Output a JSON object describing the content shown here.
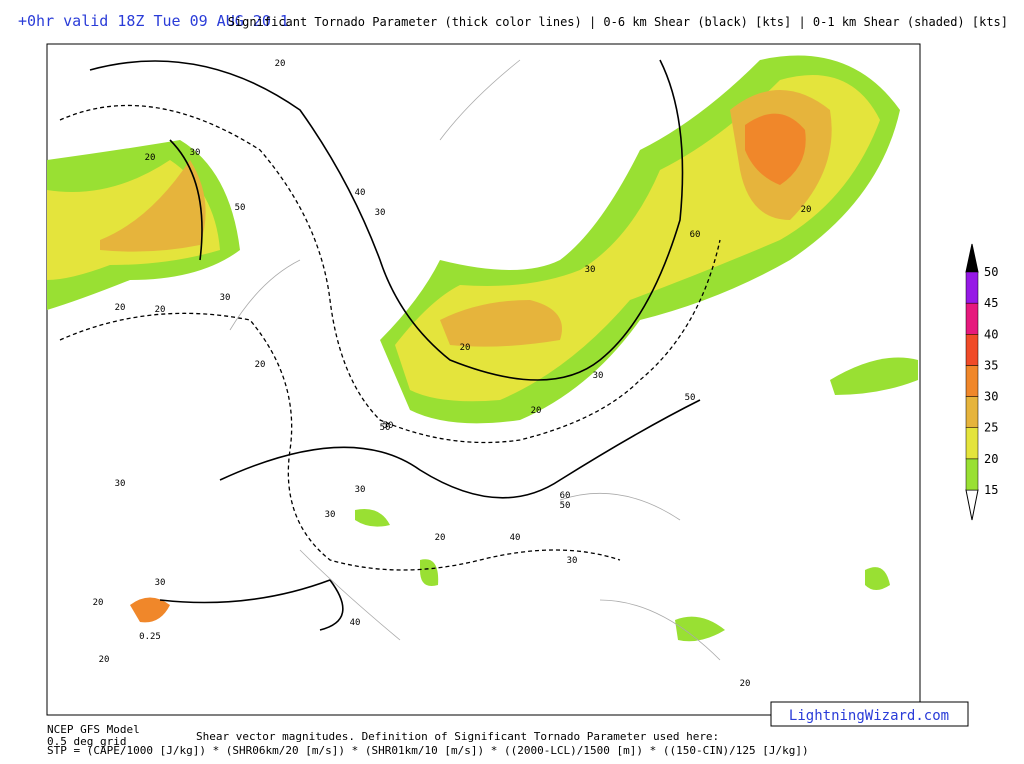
{
  "header": {
    "left": "+0hr valid 18Z Tue 09 AUG 20 1",
    "right": "Significant Tornado Parameter (thick color lines) | 0-6 km Shear (black) [kts] | 0-1 km Shear (shaded) [kts]"
  },
  "colorbar": {
    "levels": [
      15,
      20,
      25,
      30,
      35,
      40,
      45,
      50
    ],
    "colors": [
      "#99e033",
      "#e4e43c",
      "#e6b43c",
      "#f0872a",
      "#f04b28",
      "#e6197d",
      "#9619e6"
    ],
    "top_color": "#000000",
    "bottom_color": "#ffffff"
  },
  "map": {
    "contour_labels": [
      "20",
      "20",
      "30",
      "40",
      "30",
      "50",
      "20",
      "30",
      "20",
      "20",
      "60",
      "50",
      "20",
      "20",
      "30",
      "50",
      "20",
      "30",
      "50",
      "30",
      "60",
      "50",
      "40",
      "30",
      "30",
      "20",
      "20",
      "40",
      "0.25",
      "30",
      "20",
      "20",
      "30"
    ]
  },
  "footer": {
    "model": "NCEP GFS Model",
    "grid": "0.5 deg grid",
    "definition": "Shear vector magnitudes. Definition of Significant Tornado Parameter used here:",
    "formula": "STP = (CAPE/1000 [J/kg]) * (SHR06km/20 [m/s]) * (SHR01km/10 [m/s]) * ((2000-LCL)/1500 [m]) * ((150-CIN)/125 [J/kg])"
  },
  "brand": "LightningWizard.com"
}
